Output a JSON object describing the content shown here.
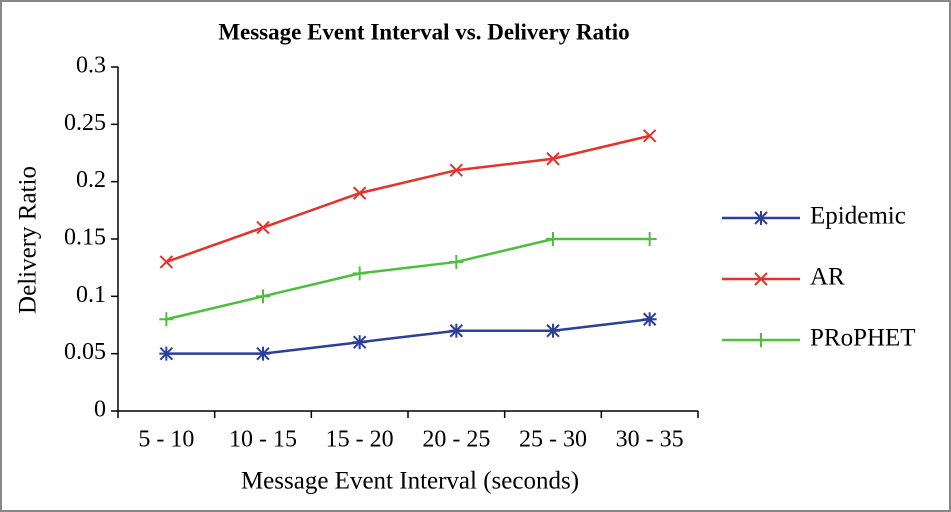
{
  "chart_data": {
    "type": "line",
    "title": "Message Event Interval vs. Delivery Ratio",
    "x_label": "Message Event Interval (seconds)",
    "y_label": "Delivery Ratio",
    "categories": [
      "5 - 10",
      "10 - 15",
      "15 - 20",
      "20 - 25",
      "25 - 30",
      "30 - 35"
    ],
    "series": [
      {
        "name": "Epidemic",
        "color": "#2b3f9c",
        "marker": "asterisk",
        "values": [
          0.05,
          0.05,
          0.06,
          0.07,
          0.07,
          0.08
        ]
      },
      {
        "name": "AR",
        "color": "#e5322b",
        "marker": "x",
        "values": [
          0.13,
          0.16,
          0.19,
          0.21,
          0.22,
          0.24
        ]
      },
      {
        "name": "PRoPHET",
        "color": "#4dbf3c",
        "marker": "plus",
        "values": [
          0.08,
          0.1,
          0.12,
          0.13,
          0.15,
          0.15
        ]
      }
    ],
    "ylim": [
      0,
      0.3
    ],
    "yticks": [
      0,
      0.05,
      0.1,
      0.15,
      0.2,
      0.25,
      0.3
    ],
    "grid": false,
    "legend": "right"
  }
}
